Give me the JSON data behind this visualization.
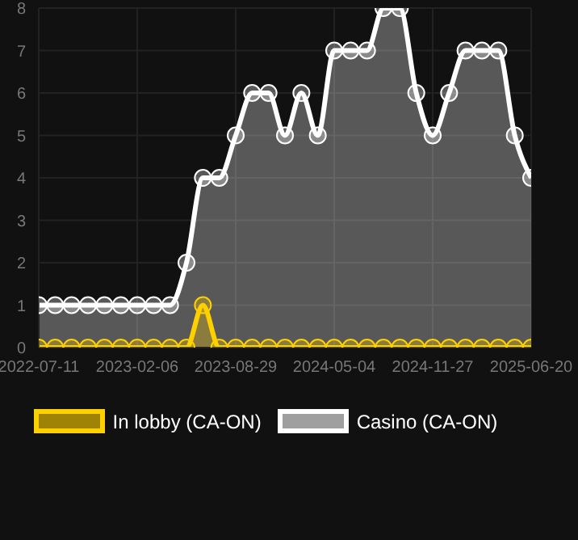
{
  "chart_data": {
    "type": "area",
    "categories": [
      "2022-07-11",
      null,
      null,
      null,
      null,
      null,
      "2023-02-06",
      null,
      null,
      null,
      null,
      null,
      "2023-08-29",
      null,
      null,
      null,
      null,
      null,
      "2024-05-04",
      null,
      null,
      null,
      null,
      null,
      "2024-11-27",
      null,
      null,
      null,
      null,
      null,
      "2025-06-20"
    ],
    "series": [
      {
        "name": "In lobby (CA-ON)",
        "color": "#ffd000",
        "values": [
          0,
          0,
          0,
          0,
          0,
          0,
          0,
          0,
          0,
          0,
          1,
          0,
          0,
          0,
          0,
          0,
          0,
          0,
          0,
          0,
          0,
          0,
          0,
          0,
          0,
          0,
          0,
          0,
          0,
          0,
          0
        ]
      },
      {
        "name": "Casino (CA-ON)",
        "color": "#ffffff",
        "values": [
          1,
          1,
          1,
          1,
          1,
          1,
          1,
          1,
          1,
          2,
          4,
          4,
          5,
          6,
          6,
          5,
          6,
          5,
          7,
          7,
          7,
          8,
          8,
          6,
          5,
          6,
          7,
          7,
          7,
          5,
          4
        ]
      }
    ],
    "ylim": [
      0,
      8
    ],
    "yticks": [
      0,
      1,
      2,
      3,
      4,
      5,
      6,
      7,
      8
    ],
    "grid": true,
    "legend": "bottom",
    "marker": "circle"
  }
}
